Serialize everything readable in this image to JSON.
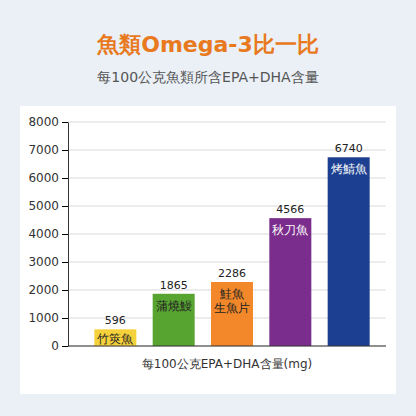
{
  "chart_data": {
    "type": "bar",
    "title": "魚類Omega-3比一比",
    "subtitle": "每100公克魚類所含EPA+DHA含量",
    "xlabel": "每100公克EPA+DHA含量(mg)",
    "categories": [
      "竹筴魚",
      "蒲燒鰻",
      "鮭魚生魚片",
      "秋刀魚",
      "烤鯖魚"
    ],
    "values": [
      596,
      1865,
      2286,
      4566,
      6740
    ],
    "colors": [
      "#f5d13b",
      "#58a431",
      "#f2882a",
      "#7a2d8c",
      "#1c3f91"
    ],
    "ylim": [
      0,
      8000
    ],
    "yticks": [
      0,
      1000,
      2000,
      3000,
      4000,
      5000,
      6000,
      7000,
      8000
    ],
    "grid": true,
    "data_labels": true,
    "tick_labels": "y"
  }
}
